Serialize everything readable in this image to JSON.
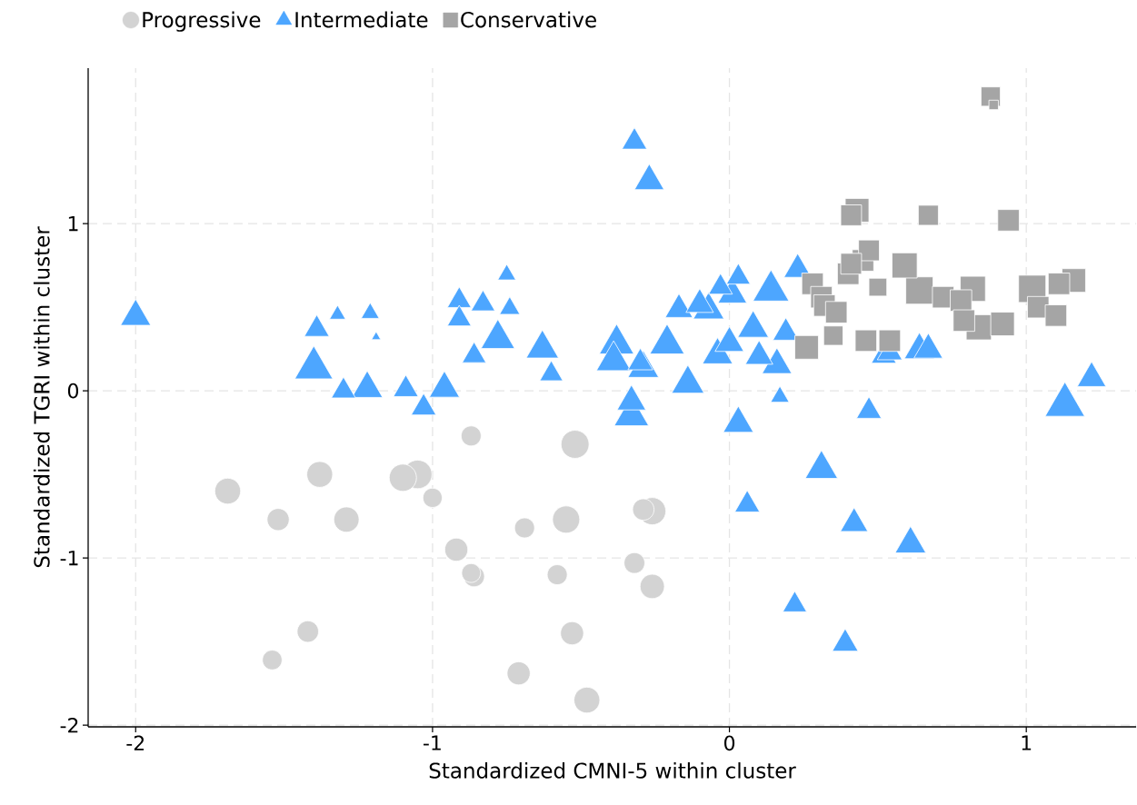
{
  "chart_data": {
    "type": "bubble",
    "xlabel": "Standardized CMNI-5 within cluster",
    "ylabel": "Standardized TGRI within cluster",
    "xlim": [
      -2.16,
      1.37
    ],
    "ylim": [
      -2.01,
      1.93
    ],
    "xticks": [
      -2,
      -1,
      0,
      1
    ],
    "yticks": [
      -2,
      -1,
      0,
      1
    ],
    "grid": true,
    "legend": "top",
    "series": [
      {
        "name": "Progressive",
        "color": "#d3d3d3",
        "marker": "circle",
        "x": [
          -1.69,
          -1.52,
          -1.38,
          -1.29,
          -1.1,
          -1.05,
          -1.0,
          -0.87,
          -0.92,
          -0.87,
          -0.86,
          -1.42,
          -1.54,
          -0.69,
          -0.55,
          -0.52,
          -0.58,
          -0.53,
          -0.71,
          -0.48,
          -0.29,
          -0.26,
          -0.32,
          -0.26
        ],
        "values": [
          -0.6,
          -0.77,
          -0.5,
          -0.77,
          -0.52,
          -0.5,
          -0.64,
          -0.27,
          -0.95,
          -1.09,
          -1.11,
          -1.44,
          -1.61,
          -0.82,
          -0.77,
          -0.32,
          -1.1,
          -1.45,
          -1.69,
          -1.85,
          -0.71,
          -0.72,
          -1.03,
          -1.17
        ],
        "sizes": [
          0.45,
          0.33,
          0.45,
          0.43,
          0.5,
          0.55,
          0.25,
          0.27,
          0.36,
          0.24,
          0.29,
          0.31,
          0.26,
          0.27,
          0.5,
          0.53,
          0.27,
          0.36,
          0.36,
          0.45,
          0.31,
          0.5,
          0.29,
          0.4
        ]
      },
      {
        "name": "Intermediate",
        "color": "#4da6ff",
        "marker": "triangle",
        "x": [
          -2.0,
          -1.39,
          -1.4,
          -1.32,
          -1.21,
          -1.19,
          -1.3,
          -1.22,
          -1.09,
          -1.03,
          -0.96,
          -0.91,
          -0.91,
          -0.32,
          -0.27,
          -0.83,
          -0.75,
          -0.74,
          -0.78,
          -0.86,
          -0.63,
          -0.6,
          -0.38,
          -0.39,
          -0.3,
          -0.29,
          -0.33,
          -0.33,
          -0.21,
          -0.14,
          -0.17,
          -0.1,
          -0.07,
          -0.03,
          0.03,
          0.01,
          0.14,
          0.23,
          0.08,
          0.19,
          -0.04,
          0.0,
          0.1,
          0.16,
          0.17,
          0.03,
          0.52,
          0.54,
          0.64,
          0.67,
          0.47,
          1.13,
          1.22,
          0.31,
          0.06,
          0.42,
          0.61,
          0.22,
          0.39
        ],
        "values": [
          0.47,
          0.39,
          0.17,
          0.47,
          0.48,
          0.33,
          0.02,
          0.04,
          0.03,
          -0.08,
          0.04,
          0.56,
          0.45,
          1.51,
          1.28,
          0.54,
          0.71,
          0.51,
          0.34,
          0.23,
          0.28,
          0.12,
          0.31,
          0.21,
          0.19,
          0.16,
          -0.04,
          -0.12,
          0.31,
          0.07,
          0.51,
          0.54,
          0.51,
          0.64,
          0.7,
          0.6,
          0.63,
          0.75,
          0.4,
          0.37,
          0.24,
          0.31,
          0.23,
          0.18,
          -0.02,
          -0.17,
          0.23,
          0.25,
          0.27,
          0.27,
          -0.1,
          -0.05,
          0.1,
          -0.44,
          -0.66,
          -0.77,
          -0.89,
          -1.26,
          -1.49
        ],
        "sizes": [
          0.53,
          0.36,
          0.84,
          0.15,
          0.19,
          0.05,
          0.34,
          0.55,
          0.36,
          0.36,
          0.53,
          0.33,
          0.33,
          0.36,
          0.51,
          0.33,
          0.19,
          0.24,
          0.66,
          0.33,
          0.61,
          0.31,
          0.69,
          0.69,
          0.36,
          0.55,
          0.48,
          0.69,
          0.69,
          0.61,
          0.44,
          0.44,
          0.55,
          0.33,
          0.33,
          0.48,
          0.75,
          0.44,
          0.55,
          0.39,
          0.53,
          0.48,
          0.44,
          0.51,
          0.2,
          0.53,
          0.36,
          0.36,
          0.53,
          0.48,
          0.36,
          0.91,
          0.48,
          0.61,
          0.36,
          0.44,
          0.55,
          0.33,
          0.39
        ]
      },
      {
        "name": "Conservative",
        "color": "#a5a5a5",
        "marker": "square",
        "x": [
          0.88,
          0.89,
          0.43,
          0.41,
          0.67,
          0.94,
          0.47,
          0.45,
          0.41,
          0.59,
          0.4,
          0.5,
          0.28,
          0.31,
          0.32,
          0.36,
          0.35,
          0.26,
          0.46,
          0.54,
          0.64,
          0.72,
          0.82,
          0.78,
          0.79,
          0.84,
          0.92,
          1.02,
          1.04,
          1.1,
          1.11,
          1.16
        ],
        "values": [
          1.76,
          1.71,
          1.08,
          1.05,
          1.05,
          1.02,
          0.84,
          0.78,
          0.76,
          0.75,
          0.7,
          0.62,
          0.64,
          0.56,
          0.51,
          0.47,
          0.33,
          0.26,
          0.3,
          0.3,
          0.6,
          0.56,
          0.61,
          0.54,
          0.42,
          0.38,
          0.4,
          0.61,
          0.5,
          0.45,
          0.64,
          0.66
        ],
        "sizes": [
          0.5,
          0.12,
          0.75,
          0.58,
          0.54,
          0.62,
          0.58,
          0.62,
          0.58,
          0.85,
          0.62,
          0.43,
          0.62,
          0.62,
          0.62,
          0.62,
          0.5,
          0.75,
          0.62,
          0.62,
          1,
          0.62,
          0.85,
          0.62,
          0.62,
          0.85,
          0.75,
          1,
          0.62,
          0.62,
          0.62,
          0.75
        ]
      }
    ]
  }
}
